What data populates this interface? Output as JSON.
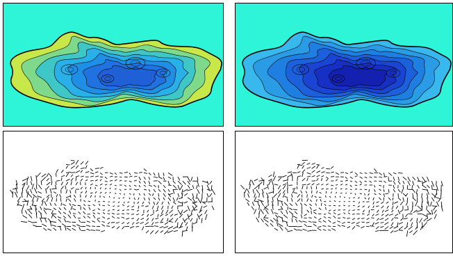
{
  "figure": {
    "panels": [
      {
        "id": "top-left",
        "kind": "filled-contour",
        "scheme": "shallow"
      },
      {
        "id": "top-right",
        "kind": "filled-contour",
        "scheme": "deep"
      },
      {
        "id": "bottom-left",
        "kind": "vector-field",
        "variant": "a"
      },
      {
        "id": "bottom-right",
        "kind": "vector-field",
        "variant": "b"
      }
    ]
  },
  "colors": {
    "land": "#2ff5d8",
    "coast": "#000000",
    "contour_line": "#000000",
    "arrow": "#000000",
    "frame": "#000000",
    "shallow_palette": [
      "#c8e84a",
      "#7fd98a",
      "#3fc7c8",
      "#2ab0e8",
      "#1f8fe6",
      "#1f72df",
      "#2060d6"
    ],
    "deep_palette": [
      "#38b8ec",
      "#2a9ce6",
      "#1f7fe0",
      "#1c60dc",
      "#1a44d2",
      "#1730c4",
      "#1420b0"
    ]
  }
}
